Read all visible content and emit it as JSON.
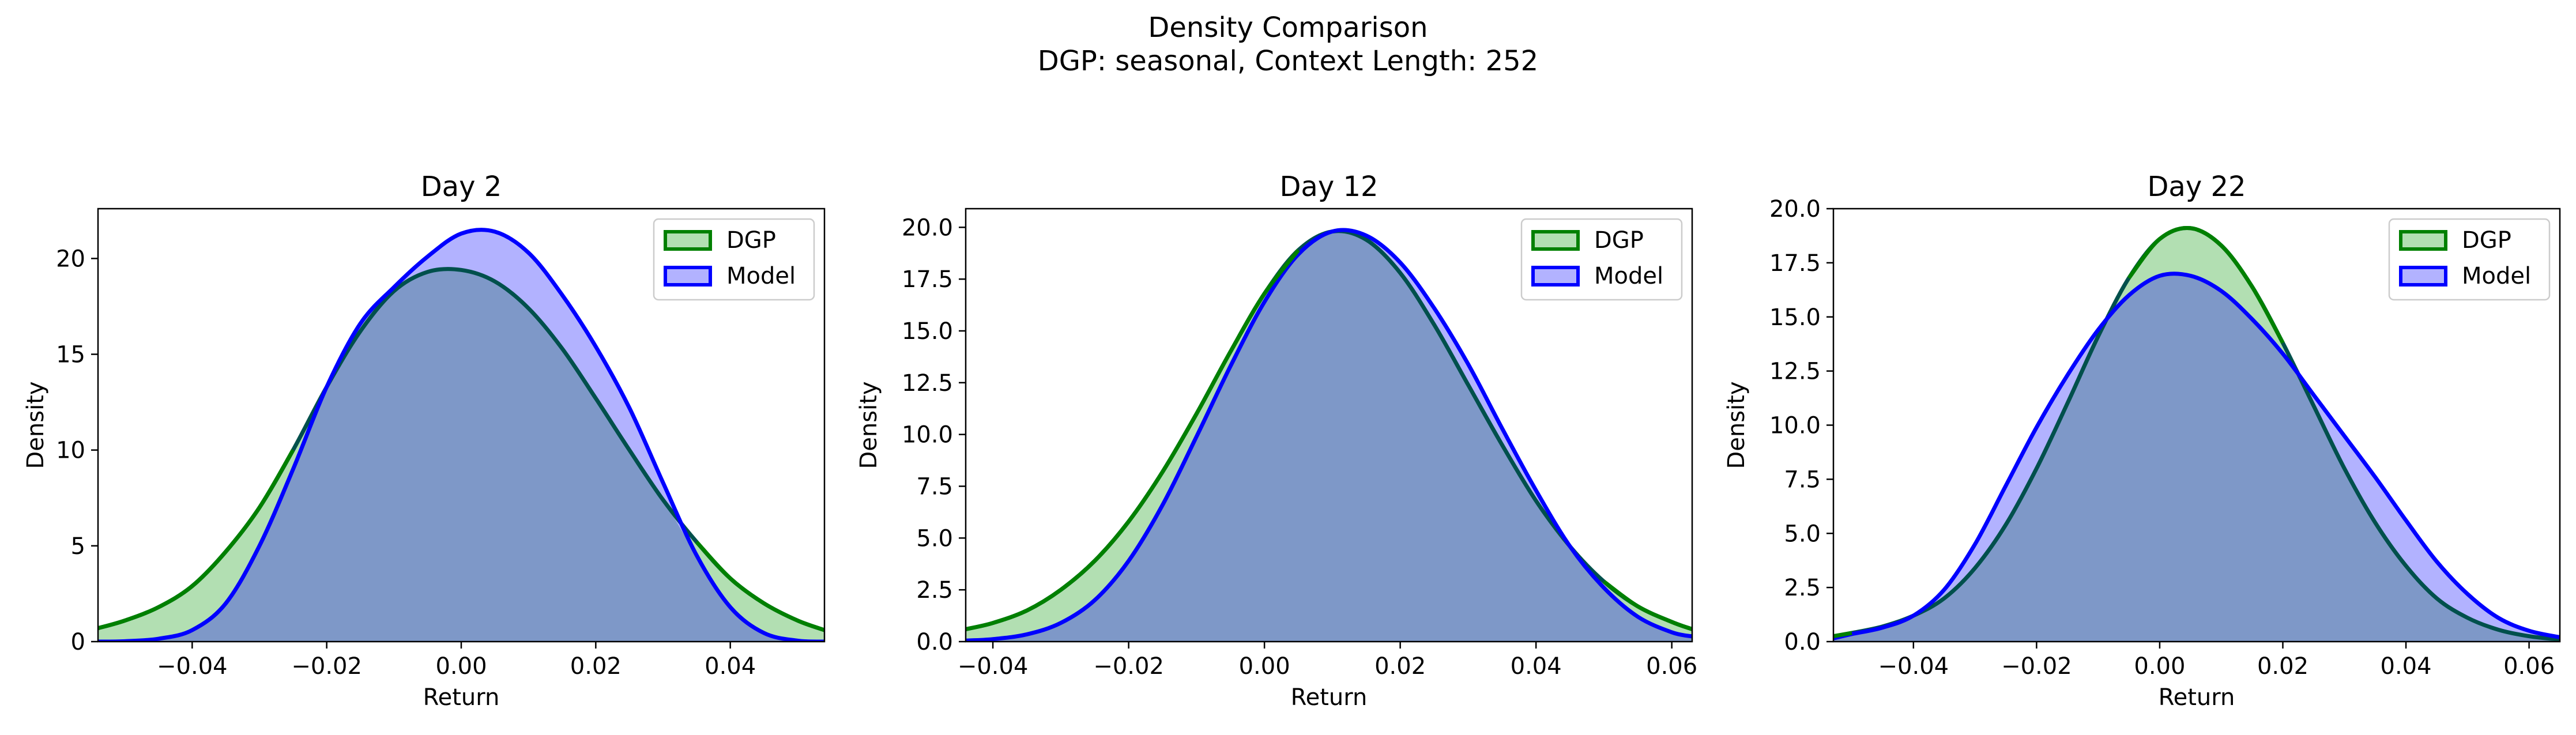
{
  "figure": {
    "title_line1": "Density Comparison",
    "title_line2": "DGP: seasonal, Context Length: 252"
  },
  "colors": {
    "dgp_line": "#008000",
    "dgp_fill": "#b2dfb2",
    "model_line": "#0000ff",
    "model_fill": "#b2b2ff",
    "overlap_fill": "#7e98c8",
    "overlap_line": "#00504c"
  },
  "chart_data": [
    {
      "type": "area",
      "title": "Day 2",
      "xlabel": "Return",
      "ylabel": "Density",
      "xlim": [
        -0.054,
        0.054
      ],
      "ylim": [
        0,
        22.6
      ],
      "xticks": [
        -0.04,
        -0.02,
        0.0,
        0.02,
        0.04
      ],
      "xtick_labels": [
        "−0.04",
        "−0.02",
        "0.00",
        "0.02",
        "0.04"
      ],
      "yticks": [
        0,
        5,
        10,
        15,
        20
      ],
      "ytick_labels": [
        "0",
        "5",
        "10",
        "15",
        "20"
      ],
      "legend": {
        "position": "top-right",
        "entries": [
          "DGP",
          "Model"
        ]
      },
      "grid": false,
      "series": [
        {
          "name": "DGP",
          "x": [
            -0.054,
            -0.05,
            -0.045,
            -0.04,
            -0.035,
            -0.03,
            -0.025,
            -0.02,
            -0.015,
            -0.01,
            -0.005,
            0.0,
            0.005,
            0.01,
            0.015,
            0.02,
            0.025,
            0.03,
            0.035,
            0.04,
            0.045,
            0.05,
            0.054
          ],
          "y": [
            0.7,
            1.1,
            1.8,
            2.9,
            4.7,
            7.0,
            10.0,
            13.3,
            16.2,
            18.3,
            19.3,
            19.4,
            18.8,
            17.4,
            15.3,
            12.7,
            10.0,
            7.4,
            5.2,
            3.3,
            2.0,
            1.1,
            0.6
          ]
        },
        {
          "name": "Model",
          "x": [
            -0.054,
            -0.05,
            -0.045,
            -0.04,
            -0.035,
            -0.03,
            -0.025,
            -0.02,
            -0.015,
            -0.01,
            -0.005,
            0.0,
            0.005,
            0.01,
            0.015,
            0.02,
            0.025,
            0.03,
            0.035,
            0.04,
            0.045,
            0.05,
            0.054
          ],
          "y": [
            0.0,
            0.02,
            0.15,
            0.6,
            2.0,
            5.0,
            9.0,
            13.3,
            16.6,
            18.5,
            20.1,
            21.3,
            21.4,
            20.3,
            18.1,
            15.4,
            12.2,
            8.3,
            4.5,
            1.8,
            0.45,
            0.05,
            0.0
          ]
        }
      ]
    },
    {
      "type": "area",
      "title": "Day 12",
      "xlabel": "Return",
      "ylabel": "Density",
      "xlim": [
        -0.044,
        0.063
      ],
      "ylim": [
        0,
        20.9
      ],
      "xticks": [
        -0.04,
        -0.02,
        0.0,
        0.02,
        0.04,
        0.06
      ],
      "xtick_labels": [
        "−0.04",
        "−0.02",
        "0.00",
        "0.02",
        "0.04",
        "0.06"
      ],
      "yticks": [
        0,
        2.5,
        5,
        7.5,
        10,
        12.5,
        15,
        17.5,
        20
      ],
      "ytick_labels": [
        "0.0",
        "2.5",
        "5.0",
        "7.5",
        "10.0",
        "12.5",
        "15.0",
        "17.5",
        "20.0"
      ],
      "legend": {
        "position": "top-right",
        "entries": [
          "DGP",
          "Model"
        ]
      },
      "grid": false,
      "series": [
        {
          "name": "DGP",
          "x": [
            -0.044,
            -0.04,
            -0.035,
            -0.03,
            -0.025,
            -0.02,
            -0.015,
            -0.01,
            -0.005,
            0.0,
            0.005,
            0.01,
            0.015,
            0.02,
            0.025,
            0.03,
            0.035,
            0.04,
            0.045,
            0.05,
            0.055,
            0.06,
            0.063
          ],
          "y": [
            0.6,
            0.9,
            1.5,
            2.5,
            3.9,
            5.8,
            8.2,
            11.0,
            14.0,
            16.8,
            18.9,
            19.8,
            19.4,
            17.8,
            15.3,
            12.4,
            9.5,
            6.8,
            4.6,
            2.9,
            1.7,
            0.95,
            0.6
          ]
        },
        {
          "name": "Model",
          "x": [
            -0.044,
            -0.04,
            -0.035,
            -0.03,
            -0.025,
            -0.02,
            -0.015,
            -0.01,
            -0.005,
            0.0,
            0.005,
            0.01,
            0.015,
            0.02,
            0.025,
            0.03,
            0.035,
            0.04,
            0.045,
            0.05,
            0.055,
            0.06,
            0.063
          ],
          "y": [
            0.05,
            0.12,
            0.35,
            0.9,
            2.0,
            3.9,
            6.6,
            9.9,
            13.3,
            16.4,
            18.7,
            19.8,
            19.6,
            18.3,
            16.1,
            13.4,
            10.3,
            7.3,
            4.6,
            2.6,
            1.2,
            0.45,
            0.25
          ]
        }
      ]
    },
    {
      "type": "area",
      "title": "Day 22",
      "xlabel": "Return",
      "ylabel": "Density",
      "xlim": [
        -0.053,
        0.065
      ],
      "ylim": [
        0,
        20.0
      ],
      "xticks": [
        -0.04,
        -0.02,
        0.0,
        0.02,
        0.04,
        0.06
      ],
      "xtick_labels": [
        "−0.04",
        "−0.02",
        "0.00",
        "0.02",
        "0.04",
        "0.06"
      ],
      "yticks": [
        0,
        2.5,
        5,
        7.5,
        10,
        12.5,
        15,
        17.5,
        20
      ],
      "ytick_labels": [
        "0.0",
        "2.5",
        "5.0",
        "7.5",
        "10.0",
        "12.5",
        "15.0",
        "17.5",
        "20.0"
      ],
      "legend": {
        "position": "top-right",
        "entries": [
          "DGP",
          "Model"
        ]
      },
      "grid": false,
      "series": [
        {
          "name": "DGP",
          "x": [
            -0.053,
            -0.05,
            -0.045,
            -0.04,
            -0.035,
            -0.03,
            -0.025,
            -0.02,
            -0.015,
            -0.01,
            -0.005,
            0.0,
            0.005,
            0.01,
            0.015,
            0.02,
            0.025,
            0.03,
            0.035,
            0.04,
            0.045,
            0.05,
            0.055,
            0.06,
            0.065
          ],
          "y": [
            0.25,
            0.4,
            0.7,
            1.2,
            2.0,
            3.4,
            5.4,
            8.0,
            11.0,
            14.1,
            16.8,
            18.6,
            19.1,
            18.3,
            16.4,
            13.8,
            10.9,
            8.0,
            5.5,
            3.5,
            2.0,
            1.1,
            0.55,
            0.25,
            0.1
          ]
        },
        {
          "name": "Model",
          "x": [
            -0.053,
            -0.05,
            -0.045,
            -0.04,
            -0.035,
            -0.03,
            -0.025,
            -0.02,
            -0.015,
            -0.01,
            -0.005,
            0.0,
            0.005,
            0.01,
            0.015,
            0.02,
            0.025,
            0.03,
            0.035,
            0.04,
            0.045,
            0.05,
            0.055,
            0.06,
            0.065
          ],
          "y": [
            0.15,
            0.35,
            0.65,
            1.2,
            2.4,
            4.5,
            7.2,
            9.9,
            12.3,
            14.4,
            16.0,
            16.9,
            16.9,
            16.2,
            14.9,
            13.3,
            11.4,
            9.5,
            7.6,
            5.6,
            3.7,
            2.2,
            1.1,
            0.5,
            0.2
          ]
        }
      ]
    }
  ]
}
